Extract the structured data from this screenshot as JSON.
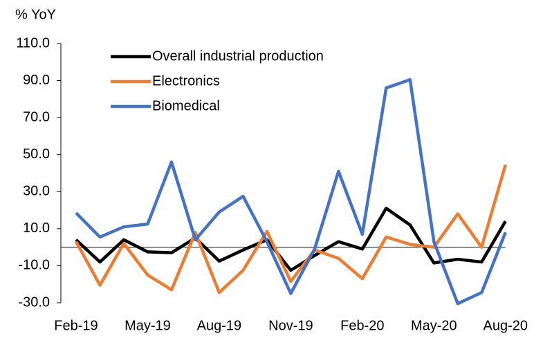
{
  "chart_data": {
    "type": "line",
    "y_label": "% YoY",
    "categories": [
      "Feb-19",
      null,
      null,
      "May-19",
      null,
      null,
      "Aug-19",
      null,
      null,
      "Nov-19",
      null,
      null,
      "Feb-20",
      null,
      null,
      "May-20",
      null,
      null,
      "Aug-20"
    ],
    "series": [
      {
        "name": "Overall industrial production",
        "color": "#000000",
        "values": [
          4,
          -8,
          4,
          -2.5,
          -3,
          5,
          -7.5,
          -1.5,
          4,
          -12.5,
          -4.5,
          3,
          -1,
          21,
          12,
          -8.5,
          -6.5,
          -8,
          14
        ]
      },
      {
        "name": "Electronics",
        "color": "#ed7d31",
        "values": [
          3,
          -20.5,
          2,
          -15,
          -23,
          8,
          -24.5,
          -12.5,
          8.5,
          -18.5,
          -1.5,
          -6,
          -17,
          5.5,
          1.5,
          0,
          18,
          0,
          44.5
        ]
      },
      {
        "name": "Biomedical",
        "color": "#4472c4",
        "values": [
          18.5,
          5.5,
          11,
          12.5,
          46,
          4,
          19,
          27.5,
          3,
          -25,
          -1,
          41,
          7,
          86,
          90.5,
          3,
          -30.5,
          -24.5,
          8
        ]
      }
    ],
    "ylim": [
      -30,
      110
    ],
    "yticks": [
      {
        "value": -30,
        "label": "-30.0"
      },
      {
        "value": -10,
        "label": "-10.0"
      },
      {
        "value": 10,
        "label": "10.0"
      },
      {
        "value": 30,
        "label": "30.0"
      },
      {
        "value": 50,
        "label": "50.0"
      },
      {
        "value": 70,
        "label": "70.0"
      },
      {
        "value": 90,
        "label": "90.0"
      },
      {
        "value": 110,
        "label": "110.0"
      }
    ],
    "grid": false,
    "legend": "top-left"
  }
}
